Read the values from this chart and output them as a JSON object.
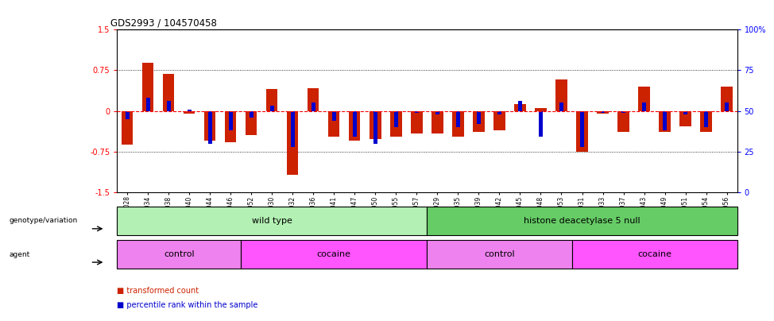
{
  "title": "GDS2993 / 104570458",
  "samples": [
    "GSM231028",
    "GSM231034",
    "GSM231038",
    "GSM231040",
    "GSM231044",
    "GSM231046",
    "GSM231052",
    "GSM231030",
    "GSM231032",
    "GSM231036",
    "GSM231041",
    "GSM231047",
    "GSM231050",
    "GSM231055",
    "GSM231057",
    "GSM231029",
    "GSM231035",
    "GSM231039",
    "GSM231042",
    "GSM231045",
    "GSM231048",
    "GSM231053",
    "GSM231031",
    "GSM231033",
    "GSM231037",
    "GSM231043",
    "GSM231049",
    "GSM231051",
    "GSM231054",
    "GSM231056"
  ],
  "red_bars": [
    -0.62,
    0.88,
    0.68,
    -0.05,
    -0.55,
    -0.58,
    -0.45,
    0.4,
    -1.18,
    0.42,
    -0.48,
    -0.55,
    -0.52,
    -0.48,
    -0.42,
    -0.42,
    -0.48,
    -0.38,
    -0.35,
    0.12,
    0.05,
    0.58,
    -0.75,
    -0.05,
    -0.38,
    0.44,
    -0.38,
    -0.28,
    -0.38,
    0.44
  ],
  "blue_bars": [
    45,
    58,
    56,
    51,
    30,
    38,
    46,
    53,
    28,
    55,
    44,
    34,
    30,
    40,
    49,
    48,
    40,
    42,
    48,
    56,
    34,
    55,
    28,
    49,
    49,
    55,
    38,
    48,
    40,
    55
  ],
  "genotype_groups": [
    {
      "label": "wild type",
      "start": 0,
      "end": 15,
      "color": "#b3f0b3"
    },
    {
      "label": "histone deacetylase 5 null",
      "start": 15,
      "end": 30,
      "color": "#66cc66"
    }
  ],
  "agent_groups": [
    {
      "label": "control",
      "start": 0,
      "end": 6,
      "color": "#ee82ee"
    },
    {
      "label": "cocaine",
      "start": 6,
      "end": 15,
      "color": "#ff55ff"
    },
    {
      "label": "control",
      "start": 15,
      "end": 22,
      "color": "#ee82ee"
    },
    {
      "label": "cocaine",
      "start": 22,
      "end": 30,
      "color": "#ff55ff"
    }
  ],
  "ylim": [
    -1.5,
    1.5
  ],
  "y2lim": [
    0,
    100
  ],
  "yticks": [
    -1.5,
    -0.75,
    0.0,
    0.75,
    1.5
  ],
  "y2ticks": [
    0,
    25,
    50,
    75,
    100
  ],
  "dotted_lines": [
    -0.75,
    0.75
  ],
  "red_color": "#cc2200",
  "blue_color": "#0000cc",
  "bg_color": "#ffffff"
}
